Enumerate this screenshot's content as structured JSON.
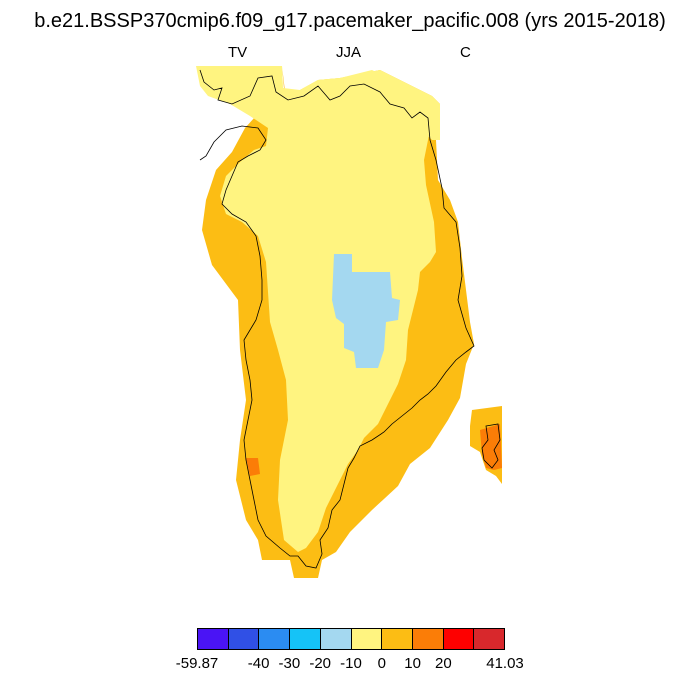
{
  "title": "b.e21.BSSP370cmip6.f09_g17.pacemaker_pacific.008 (yrs 2015-2018)",
  "subtitle_left": "TV",
  "subtitle_center": "JJA",
  "subtitle_right": "C",
  "colorbar": {
    "colors": [
      "#4a14f5",
      "#3050e6",
      "#2b8cf2",
      "#15c3f7",
      "#a4d8f0",
      "#fff480",
      "#fcbd14",
      "#fb7d07",
      "#fe0000",
      "#d8282c"
    ],
    "labels": [
      {
        "text": "-59.87",
        "boundary": 0
      },
      {
        "text": "-40",
        "boundary": 2
      },
      {
        "text": "-30",
        "boundary": 3
      },
      {
        "text": "-20",
        "boundary": 4
      },
      {
        "text": "-10",
        "boundary": 5
      },
      {
        "text": "0",
        "boundary": 6
      },
      {
        "text": "10",
        "boundary": 7
      },
      {
        "text": "20",
        "boundary": 8
      },
      {
        "text": "41.03",
        "boundary": 10
      }
    ]
  },
  "map_colors": {
    "interior": "#fff480",
    "coast": "#fcbd14",
    "warm": "#fb7d07",
    "cold": "#a4d8f0",
    "coastline": "#000000"
  }
}
